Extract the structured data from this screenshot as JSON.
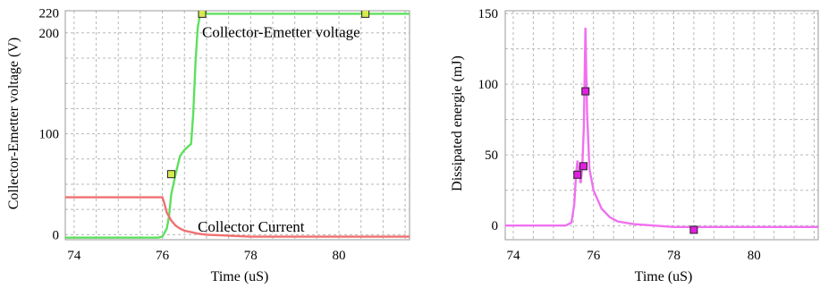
{
  "chart_data": [
    {
      "type": "line",
      "xlabel": "Time (uS)",
      "ylabel": "Collector-Emetter voltage (V)",
      "xlim": [
        73.8,
        81.6
      ],
      "ylim": [
        -5,
        222
      ],
      "x_ticks": [
        74,
        76,
        78,
        80
      ],
      "y_ticks": [
        {
          "value": 0,
          "label": "0"
        },
        {
          "value": 100,
          "label": "100"
        },
        {
          "value": 200,
          "label": "200"
        },
        {
          "value": 220,
          "label": "220"
        }
      ],
      "grid": true,
      "annotations": [
        {
          "text": "Collector-Emetter voltage",
          "x": 76.9,
          "y": 196
        },
        {
          "text": "Collector Current",
          "x": 76.8,
          "y": 3
        }
      ],
      "series": [
        {
          "name": "Collector-Emetter voltage",
          "color": "#5ee05e",
          "points": [
            [
              73.8,
              -3
            ],
            [
              75.9,
              -3
            ],
            [
              76.0,
              -2
            ],
            [
              76.05,
              2
            ],
            [
              76.1,
              6
            ],
            [
              76.15,
              18
            ],
            [
              76.2,
              40
            ],
            [
              76.3,
              60
            ],
            [
              76.4,
              78
            ],
            [
              76.5,
              84
            ],
            [
              76.6,
              88
            ],
            [
              76.65,
              90
            ],
            [
              76.7,
              120
            ],
            [
              76.75,
              170
            ],
            [
              76.8,
              205
            ],
            [
              76.85,
              217
            ],
            [
              76.9,
              219
            ],
            [
              77.0,
              219
            ],
            [
              78,
              219
            ],
            [
              80,
              219
            ],
            [
              81.6,
              219
            ]
          ],
          "markers": [
            [
              76.2,
              60
            ],
            [
              76.9,
              219
            ],
            [
              80.6,
              219
            ]
          ]
        },
        {
          "name": "Collector Current",
          "color": "#f07070",
          "points": [
            [
              73.8,
              37
            ],
            [
              75.0,
              37
            ],
            [
              76.0,
              37
            ],
            [
              76.05,
              30
            ],
            [
              76.1,
              22
            ],
            [
              76.2,
              14
            ],
            [
              76.3,
              9
            ],
            [
              76.4,
              6
            ],
            [
              76.5,
              4
            ],
            [
              76.6,
              3
            ],
            [
              76.7,
              2
            ],
            [
              76.8,
              1
            ],
            [
              77.0,
              0
            ],
            [
              77.5,
              -1
            ],
            [
              78,
              -2
            ],
            [
              80,
              -2
            ],
            [
              81.6,
              -2
            ]
          ]
        }
      ]
    },
    {
      "type": "line",
      "xlabel": "Time (uS)",
      "ylabel": "Dissipated energie (mJ)",
      "xlim": [
        73.8,
        81.6
      ],
      "ylim": [
        -10,
        152
      ],
      "x_ticks": [
        74,
        76,
        78,
        80
      ],
      "y_ticks": [
        {
          "value": 0,
          "label": "0"
        },
        {
          "value": 50,
          "label": "50"
        },
        {
          "value": 100,
          "label": "100"
        },
        {
          "value": 150,
          "label": "150"
        }
      ],
      "grid": true,
      "series": [
        {
          "name": "Dissipated energie",
          "color": "#f070f0",
          "points": [
            [
              73.8,
              0
            ],
            [
              75.3,
              0
            ],
            [
              75.45,
              2
            ],
            [
              75.52,
              15
            ],
            [
              75.57,
              38
            ],
            [
              75.6,
              46
            ],
            [
              75.64,
              38
            ],
            [
              75.68,
              30
            ],
            [
              75.72,
              42
            ],
            [
              75.76,
              70
            ],
            [
              75.8,
              140
            ],
            [
              75.84,
              80
            ],
            [
              75.9,
              40
            ],
            [
              76.0,
              25
            ],
            [
              76.2,
              12
            ],
            [
              76.4,
              6
            ],
            [
              76.6,
              3
            ],
            [
              77,
              1
            ],
            [
              77.5,
              0
            ],
            [
              78,
              -1
            ],
            [
              79,
              -1
            ],
            [
              80,
              -1
            ],
            [
              81.6,
              -1
            ]
          ],
          "markers": [
            [
              75.6,
              36
            ],
            [
              75.75,
              42
            ],
            [
              75.8,
              95
            ],
            [
              78.5,
              -3
            ]
          ]
        }
      ]
    }
  ]
}
